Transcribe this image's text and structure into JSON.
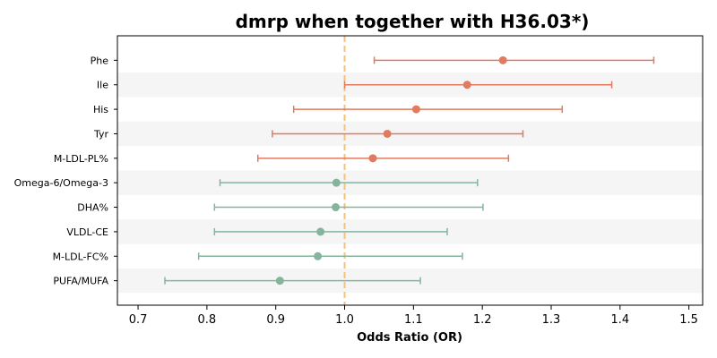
{
  "chart_data": {
    "type": "forest",
    "title": "dmrp when together with H36.03*)",
    "xlabel": "Odds Ratio (OR)",
    "xlim": [
      0.67,
      1.52
    ],
    "xticks": [
      0.7,
      0.8,
      0.9,
      1.0,
      1.1,
      1.2,
      1.3,
      1.4,
      1.5
    ],
    "xtick_labels": [
      "0.7",
      "0.8",
      "0.9",
      "1.0",
      "1.1",
      "1.2",
      "1.3",
      "1.4",
      "1.5"
    ],
    "reference_line": 1.0,
    "grid": false,
    "items": [
      {
        "label": "Phe",
        "or": 1.23,
        "lower": 1.043,
        "upper": 1.449
      },
      {
        "label": "Ile",
        "or": 1.178,
        "lower": 1.0,
        "upper": 1.388
      },
      {
        "label": "His",
        "or": 1.104,
        "lower": 0.926,
        "upper": 1.316
      },
      {
        "label": "Tyr",
        "or": 1.062,
        "lower": 0.895,
        "upper": 1.259
      },
      {
        "label": "M-LDL-PL%",
        "or": 1.041,
        "lower": 0.874,
        "upper": 1.238
      },
      {
        "label": "Omega-6/Omega-3",
        "or": 0.988,
        "lower": 0.819,
        "upper": 1.193
      },
      {
        "label": "DHA%",
        "or": 0.987,
        "lower": 0.811,
        "upper": 1.201
      },
      {
        "label": "VLDL-CE",
        "or": 0.965,
        "lower": 0.811,
        "upper": 1.149
      },
      {
        "label": "M-LDL-FC%",
        "or": 0.961,
        "lower": 0.788,
        "upper": 1.171
      },
      {
        "label": "PUFA/MUFA",
        "or": 0.906,
        "lower": 0.739,
        "upper": 1.11
      }
    ],
    "colors": {
      "positive": "#e07b5f",
      "negative": "#84b59c",
      "reference": "#f2c27e",
      "stripe": "#f5f5f5"
    }
  }
}
